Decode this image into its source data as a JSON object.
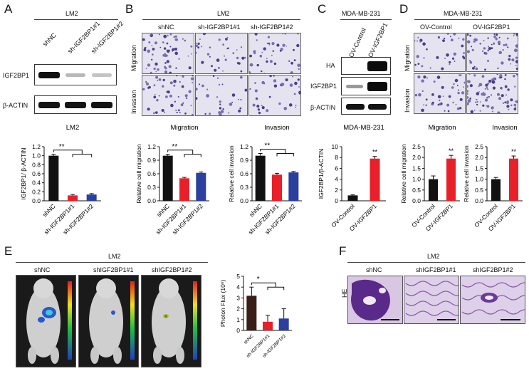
{
  "panels": {
    "A": "A",
    "B": "B",
    "C": "C",
    "D": "D",
    "E": "E",
    "F": "F"
  },
  "panelA": {
    "header": "LM2",
    "lanes": [
      "shNC",
      "sh-IGF2BP1#1",
      "sh-IGF2BP1#2"
    ],
    "blots": [
      "IGF2BP1",
      "β-ACTIN"
    ]
  },
  "panelB": {
    "header": "LM2",
    "cols": [
      "shNC",
      "sh-IGF2BP1#1",
      "sh-IGF2BP1#2"
    ],
    "rows": [
      "Migration",
      "Invasion"
    ]
  },
  "panelC": {
    "header": "MDA-MB-231",
    "lanes": [
      "OV-Control",
      "OV-IGF2BP1"
    ],
    "blots": [
      "HA",
      "IGF2BP1",
      "β-ACTIN"
    ]
  },
  "panelD": {
    "header": "MDA-MB-231",
    "cols": [
      "OV-Control",
      "OV-IGF2BP1"
    ],
    "rows": [
      "Migration",
      "Invasion"
    ]
  },
  "panelE": {
    "header": "LM2",
    "cols": [
      "shNC",
      "shIGF2BP1#1",
      "shIGF2BP1#2"
    ]
  },
  "panelF": {
    "header": "LM2",
    "cols": [
      "shNC",
      "shIGF2BP1#1",
      "shIGF2BP1#2"
    ],
    "row": "HE"
  },
  "chart_data": [
    {
      "id": "A",
      "type": "bar",
      "title": "LM2",
      "ylabel": "IGF2BP1/ β-ACTIN",
      "ylim": [
        0,
        1.2
      ],
      "yticks": [
        "0.0",
        "0.2",
        "0.4",
        "0.6",
        "0.8",
        "1.0",
        "1.2"
      ],
      "categories": [
        "shNC",
        "sh-IGF2BP1#1",
        "sh-IGF2BP1#2"
      ],
      "values": [
        1.0,
        0.12,
        0.14
      ],
      "errors": [
        0.03,
        0.02,
        0.02
      ],
      "colors": [
        "#111111",
        "#e8202a",
        "#2a3f9e"
      ],
      "sig": "**"
    },
    {
      "id": "B1",
      "type": "bar",
      "title": "Migration",
      "ylabel": "Relative cell migration",
      "ylim": [
        0,
        1.2
      ],
      "yticks": [
        "0.0",
        "0.3",
        "0.6",
        "0.9",
        "1.2"
      ],
      "categories": [
        "shNC",
        "sh-IGF2BP1#1",
        "sh-IGF2BP1#2"
      ],
      "values": [
        1.0,
        0.5,
        0.62
      ],
      "errors": [
        0.03,
        0.02,
        0.02
      ],
      "colors": [
        "#111111",
        "#e8202a",
        "#2a3f9e"
      ],
      "sig": "**"
    },
    {
      "id": "B2",
      "type": "bar",
      "title": "Invasion",
      "ylabel": "Relative cell invasion",
      "ylim": [
        0,
        1.2
      ],
      "yticks": [
        "0.0",
        "0.3",
        "0.6",
        "0.9",
        "1.2"
      ],
      "categories": [
        "shNC",
        "sh-IGF2BP1#1",
        "sh-IGF2BP1#2"
      ],
      "values": [
        1.0,
        0.58,
        0.63
      ],
      "errors": [
        0.05,
        0.03,
        0.02
      ],
      "colors": [
        "#111111",
        "#e8202a",
        "#2a3f9e"
      ],
      "sig": "**"
    },
    {
      "id": "C",
      "type": "bar",
      "title": "MDA-MB-231",
      "ylabel": "IGF2BP1/β-ACTIN",
      "ylim": [
        0,
        10
      ],
      "yticks": [
        "0",
        "2",
        "4",
        "6",
        "8",
        "10"
      ],
      "categories": [
        "OV-Control",
        "OV-IGF2BP1"
      ],
      "values": [
        1.0,
        7.8
      ],
      "errors": [
        0.1,
        0.4
      ],
      "colors": [
        "#111111",
        "#e8202a"
      ],
      "sig": "**"
    },
    {
      "id": "D1",
      "type": "bar",
      "title": "Migration",
      "ylabel": "Relative cell migration",
      "ylim": [
        0,
        2.5
      ],
      "yticks": [
        "0.0",
        "0.5",
        "1.0",
        "1.5",
        "2.0",
        "2.5"
      ],
      "categories": [
        "OV-Control",
        "OV-IGF2BP1"
      ],
      "values": [
        1.0,
        1.95
      ],
      "errors": [
        0.15,
        0.15
      ],
      "colors": [
        "#111111",
        "#e8202a"
      ],
      "sig": "**"
    },
    {
      "id": "D2",
      "type": "bar",
      "title": "Invasion",
      "ylabel": "Relative cell invasion",
      "ylim": [
        0,
        2.5
      ],
      "yticks": [
        "0.0",
        "0.5",
        "1.0",
        "1.5",
        "2.0",
        "2.5"
      ],
      "categories": [
        "OV-Control",
        "OV-IGF2BP1"
      ],
      "values": [
        1.0,
        1.95
      ],
      "errors": [
        0.08,
        0.12
      ],
      "colors": [
        "#111111",
        "#e8202a"
      ],
      "sig": "**"
    },
    {
      "id": "E",
      "type": "bar",
      "title": "",
      "ylabel": "Photon Flux (10⁶)",
      "ylim": [
        0,
        5
      ],
      "yticks": [
        "0",
        "1",
        "2",
        "3",
        "4",
        "5"
      ],
      "categories": [
        "shNC",
        "sh-IGF2BP1#1",
        "sh-IGF2BP1#2"
      ],
      "values": [
        3.2,
        0.8,
        1.1
      ],
      "errors": [
        0.8,
        0.6,
        0.9
      ],
      "colors": [
        "#3a1f18",
        "#e8202a",
        "#2a3f9e"
      ],
      "sig": "*"
    }
  ]
}
